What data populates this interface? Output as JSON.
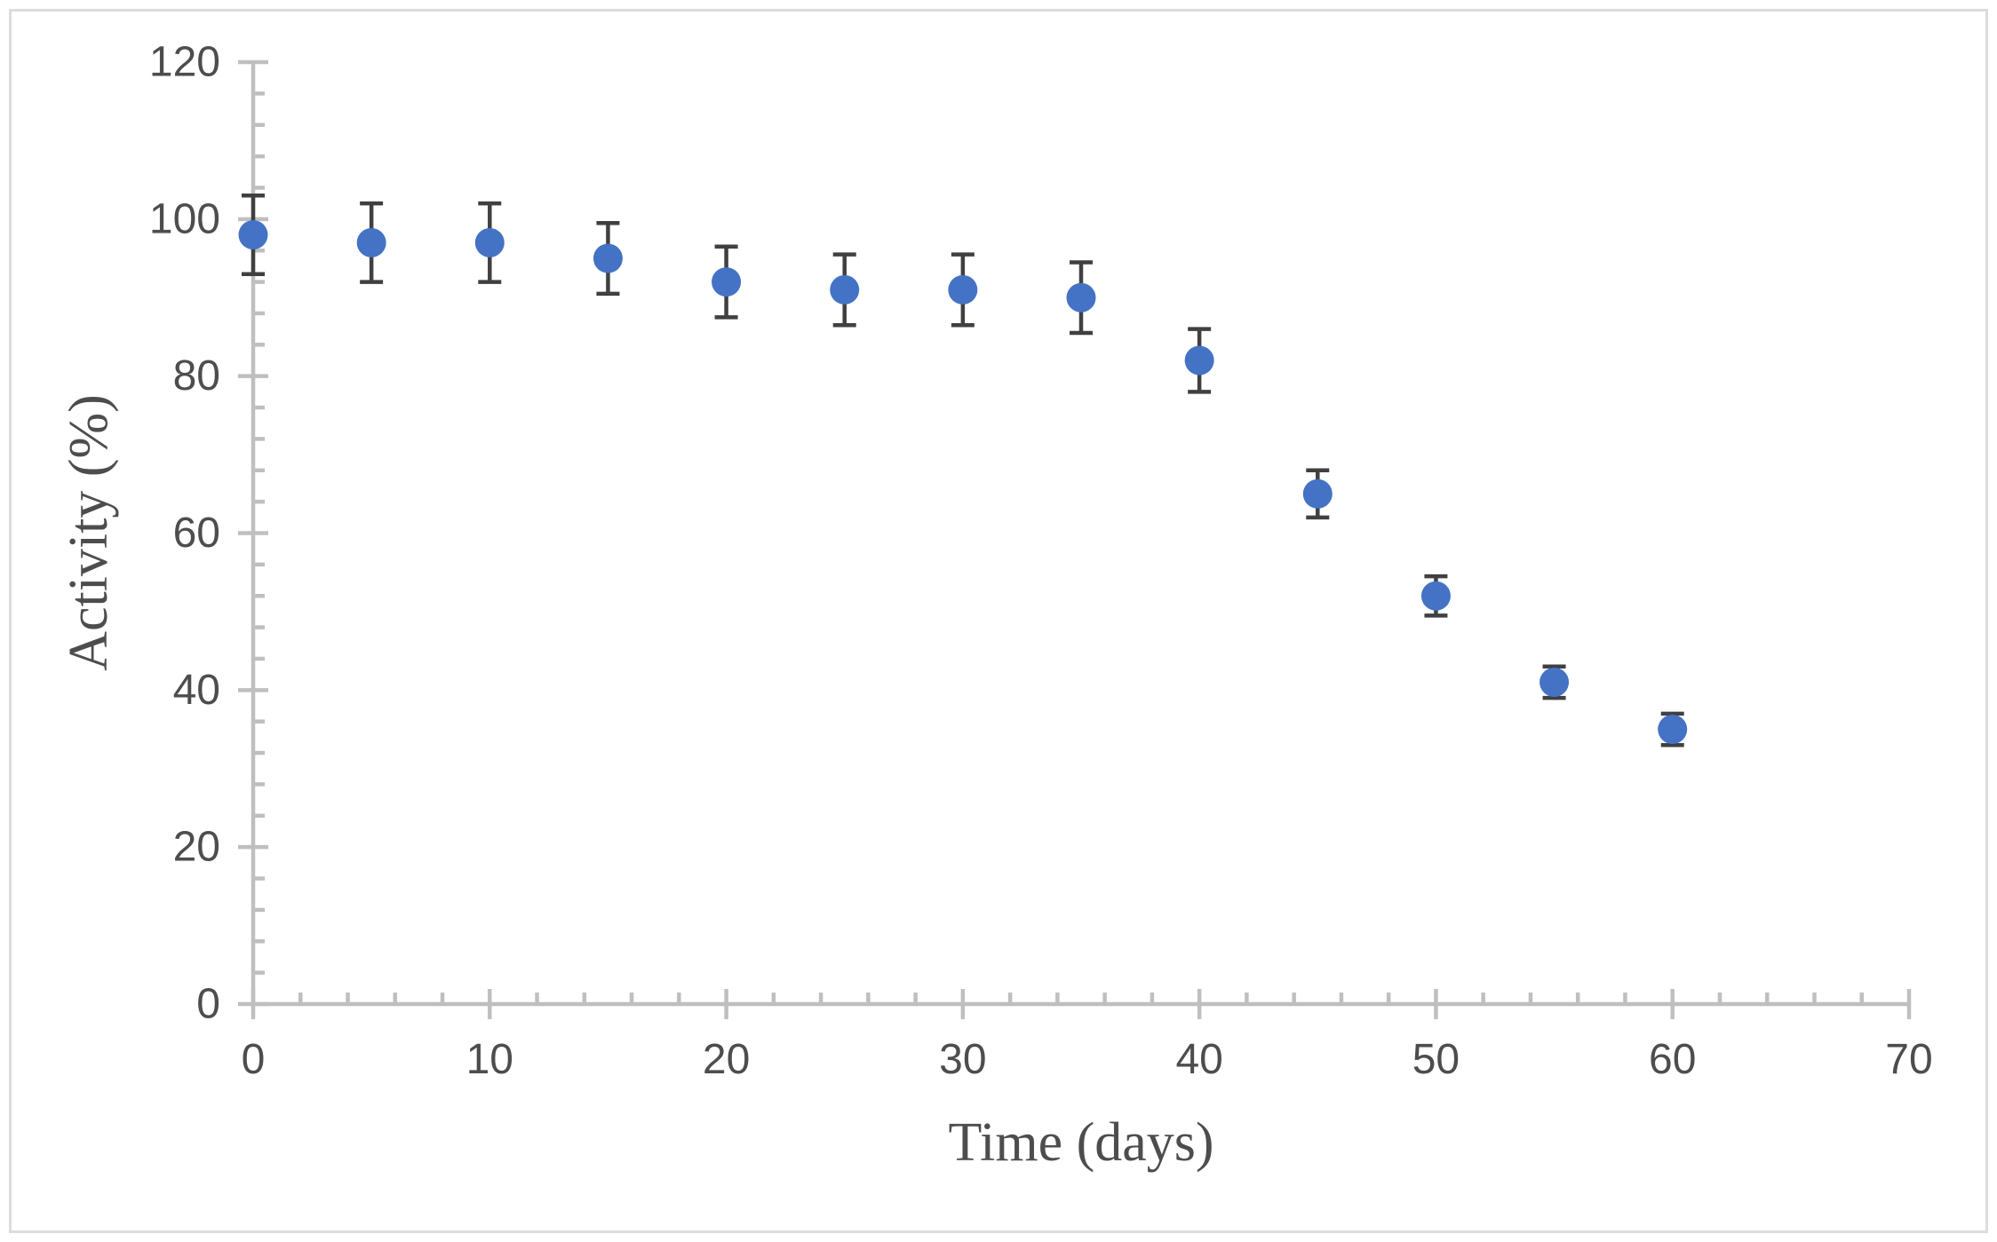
{
  "figure": {
    "background_color": "#ffffff",
    "border_color": "#dcdcdc"
  },
  "chart_data": {
    "type": "scatter",
    "title": "",
    "xlabel": "Time (days)",
    "ylabel": "Activity (%)",
    "x": [
      0,
      5,
      10,
      15,
      20,
      25,
      30,
      35,
      40,
      45,
      50,
      55,
      60
    ],
    "series": [
      {
        "name": "Activity (%)",
        "values": [
          98,
          97,
          97,
          95,
          92,
          91,
          91,
          90,
          82,
          65,
          52,
          41,
          35
        ],
        "error_bars": [
          5,
          5,
          5,
          4.5,
          4.5,
          4.5,
          4.5,
          4.5,
          4,
          3,
          2.5,
          2,
          2
        ]
      }
    ],
    "xlim": [
      0,
      70
    ],
    "ylim": [
      0,
      120
    ],
    "x_major_ticks": [
      0,
      10,
      20,
      30,
      40,
      50,
      60,
      70
    ],
    "y_major_ticks": [
      0,
      20,
      40,
      60,
      80,
      100,
      120
    ],
    "x_minor_step": 2,
    "y_minor_step": 4,
    "grid": false,
    "legend": "none",
    "marker_color": "#4472C4",
    "error_bar_color": "#404040",
    "axis_color": "#BFBFBF",
    "tick_label_color": "#4d4d4d",
    "axis_title_color": "#4d4d4d"
  }
}
